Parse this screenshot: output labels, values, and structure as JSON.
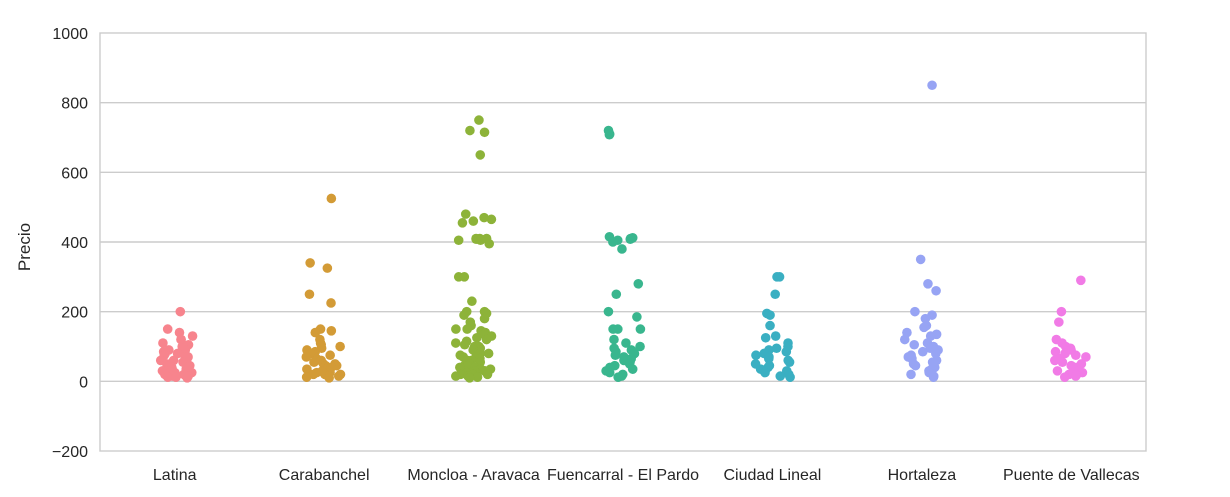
{
  "chart_data": {
    "type": "scatter",
    "subtype": "strip",
    "title": "",
    "xlabel": "",
    "ylabel": "Precio",
    "ylim": [
      -200,
      1000
    ],
    "yticks": [
      -200,
      0,
      200,
      400,
      600,
      800,
      1000
    ],
    "grid": true,
    "legend": "none",
    "categories": [
      "Latina",
      "Carabanchel",
      "Moncloa - Aravaca",
      "Fuencarral - El Pardo",
      "Ciudad Lineal",
      "Hortaleza",
      "Puente de Vallecas"
    ],
    "colors": [
      "#f7848d",
      "#d39b36",
      "#8db339",
      "#39b68e",
      "#3aafc2",
      "#97a4f4",
      "#f17be6"
    ],
    "series": [
      {
        "category": "Latina",
        "values": [
          200,
          150,
          140,
          130,
          120,
          120,
          110,
          105,
          100,
          100,
          95,
          90,
          90,
          85,
          80,
          80,
          75,
          70,
          70,
          65,
          60,
          60,
          55,
          50,
          50,
          45,
          45,
          40,
          40,
          35,
          35,
          30,
          30,
          30,
          25,
          25,
          25,
          20,
          20,
          20,
          15,
          15,
          15,
          12,
          12,
          10
        ]
      },
      {
        "category": "Carabanchel",
        "values": [
          525,
          340,
          325,
          250,
          225,
          150,
          145,
          140,
          120,
          110,
          105,
          100,
          95,
          90,
          85,
          80,
          75,
          70,
          65,
          60,
          60,
          55,
          50,
          50,
          45,
          45,
          40,
          40,
          35,
          35,
          30,
          30,
          25,
          25,
          25,
          20,
          20,
          20,
          15,
          15,
          12,
          10
        ]
      },
      {
        "category": "Moncloa - Aravaca",
        "values": [
          750,
          720,
          715,
          650,
          480,
          470,
          465,
          460,
          455,
          410,
          410,
          410,
          408,
          405,
          405,
          395,
          300,
          300,
          230,
          200,
          200,
          195,
          190,
          180,
          170,
          160,
          150,
          150,
          145,
          140,
          135,
          130,
          125,
          120,
          115,
          110,
          105,
          100,
          100,
          95,
          90,
          90,
          85,
          80,
          80,
          75,
          70,
          70,
          65,
          60,
          60,
          55,
          50,
          50,
          45,
          45,
          40,
          40,
          35,
          35,
          30,
          30,
          30,
          25,
          25,
          20,
          20,
          20,
          15,
          15,
          12,
          10
        ]
      },
      {
        "category": "Fuencarral - El Pardo",
        "values": [
          720,
          710,
          708,
          415,
          412,
          410,
          408,
          405,
          400,
          380,
          280,
          250,
          200,
          185,
          150,
          150,
          150,
          120,
          110,
          100,
          95,
          90,
          85,
          80,
          75,
          70,
          65,
          60,
          55,
          50,
          45,
          40,
          35,
          30,
          25,
          20,
          15,
          12
        ]
      },
      {
        "category": "Ciudad Lineal",
        "values": [
          300,
          300,
          250,
          195,
          190,
          160,
          130,
          125,
          110,
          100,
          95,
          90,
          85,
          80,
          75,
          70,
          65,
          60,
          55,
          50,
          45,
          40,
          35,
          30,
          25,
          20,
          15,
          12
        ]
      },
      {
        "category": "Hortaleza",
        "values": [
          850,
          350,
          280,
          260,
          200,
          190,
          180,
          160,
          155,
          140,
          135,
          130,
          120,
          110,
          105,
          100,
          95,
          90,
          85,
          80,
          75,
          70,
          65,
          60,
          55,
          50,
          45,
          40,
          35,
          30,
          25,
          20,
          15,
          12
        ]
      },
      {
        "category": "Puente de Vallecas",
        "values": [
          290,
          200,
          170,
          120,
          110,
          100,
          95,
          90,
          85,
          80,
          75,
          70,
          65,
          60,
          55,
          50,
          45,
          40,
          35,
          30,
          25,
          20,
          18,
          15,
          12
        ]
      }
    ]
  }
}
